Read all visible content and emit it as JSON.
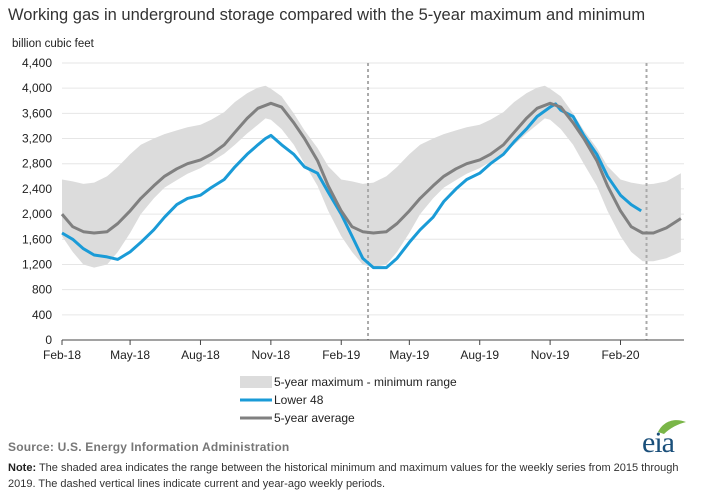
{
  "header": {
    "title": "Working gas in underground  storage compared with the 5-year maximum and minimum",
    "units": "billion cubic feet"
  },
  "footer": {
    "source": "Source:  U.S. Energy Information Administration",
    "note_label": "Note:",
    "note_text": " The shaded area indicates the range between the historical minimum and maximum values for the weekly series from 2015 through 2019. The dashed vertical lines indicate current and year-ago weekly periods.",
    "logo_text": "eia"
  },
  "colors": {
    "range_band": "#dcdcdc",
    "lower48": "#1a9bd7",
    "avg": "#808080",
    "logo": "#1a4f7a",
    "dashed_line": "#aaaaaa"
  },
  "chart_data": {
    "type": "area",
    "title": "Working gas in underground  storage compared with the 5-year maximum and minimum",
    "ylabel": "billion cubic feet",
    "ylim": [
      0,
      4400
    ],
    "yticks": [
      0,
      400,
      800,
      1200,
      1600,
      2000,
      2400,
      2800,
      3200,
      3600,
      4000,
      4400
    ],
    "ytick_labels": [
      "0",
      "400",
      "800",
      "1,200",
      "1,600",
      "2,000",
      "2,400",
      "2,800",
      "3,200",
      "3,600",
      "4,000",
      "4,400"
    ],
    "xlim": [
      "2018-02-01",
      "2020-04-24"
    ],
    "xticks": [
      "2018-02-01",
      "2018-05-01",
      "2018-08-01",
      "2018-11-01",
      "2019-02-01",
      "2019-05-01",
      "2019-08-01",
      "2019-11-01",
      "2020-02-01"
    ],
    "xtick_labels": [
      "Feb-18",
      "May-18",
      "Aug-18",
      "Nov-18",
      "Feb-19",
      "May-19",
      "Aug-19",
      "Nov-19",
      "Feb-20"
    ],
    "grid": "horizontal",
    "legend_position": "bottom",
    "vertical_markers": [
      "2019-03-08",
      "2020-03-06"
    ],
    "series": [
      {
        "name": "5-year maximum - minimum range",
        "kind": "band",
        "x": [
          "2018-02-01",
          "2018-02-15",
          "2018-03-01",
          "2018-03-15",
          "2018-04-01",
          "2018-04-15",
          "2018-05-01",
          "2018-05-15",
          "2018-06-01",
          "2018-06-15",
          "2018-07-01",
          "2018-07-15",
          "2018-08-01",
          "2018-08-15",
          "2018-09-01",
          "2018-09-15",
          "2018-10-01",
          "2018-10-15",
          "2018-10-25",
          "2018-11-01",
          "2018-11-15",
          "2018-12-01",
          "2018-12-15",
          "2019-01-01",
          "2019-01-15",
          "2019-02-01",
          "2019-02-15",
          "2019-03-01",
          "2019-03-15",
          "2019-04-01",
          "2019-04-15",
          "2019-05-01",
          "2019-05-15",
          "2019-06-01",
          "2019-06-15",
          "2019-07-01",
          "2019-07-15",
          "2019-08-01",
          "2019-08-15",
          "2019-09-01",
          "2019-09-15",
          "2019-10-01",
          "2019-10-15",
          "2019-10-25",
          "2019-11-01",
          "2019-11-15",
          "2019-12-01",
          "2019-12-15",
          "2020-01-01",
          "2020-01-15",
          "2020-02-01",
          "2020-02-15",
          "2020-03-01",
          "2020-03-15",
          "2020-04-01",
          "2020-04-20"
        ],
        "upper": [
          2550,
          2520,
          2480,
          2500,
          2600,
          2750,
          2950,
          3100,
          3200,
          3270,
          3330,
          3380,
          3420,
          3500,
          3620,
          3780,
          3920,
          4010,
          4040,
          3990,
          3870,
          3600,
          3330,
          3050,
          2760,
          2550,
          2520,
          2480,
          2500,
          2600,
          2750,
          2950,
          3100,
          3200,
          3270,
          3330,
          3380,
          3420,
          3500,
          3620,
          3780,
          3920,
          4010,
          4040,
          3990,
          3870,
          3600,
          3330,
          3050,
          2760,
          2550,
          2500,
          2470,
          2480,
          2520,
          2650
        ],
        "lower": [
          1650,
          1400,
          1200,
          1150,
          1200,
          1400,
          1700,
          2000,
          2250,
          2420,
          2540,
          2640,
          2730,
          2830,
          2960,
          3100,
          3280,
          3420,
          3520,
          3500,
          3350,
          3100,
          2800,
          2450,
          2050,
          1650,
          1400,
          1200,
          1150,
          1200,
          1400,
          1700,
          2000,
          2250,
          2420,
          2540,
          2640,
          2730,
          2830,
          2960,
          3100,
          3280,
          3420,
          3520,
          3500,
          3350,
          3100,
          2800,
          2450,
          2050,
          1650,
          1400,
          1250,
          1250,
          1300,
          1400
        ]
      },
      {
        "name": "Lower 48",
        "kind": "line",
        "x": [
          "2018-02-01",
          "2018-02-15",
          "2018-03-01",
          "2018-03-15",
          "2018-04-01",
          "2018-04-15",
          "2018-05-01",
          "2018-05-15",
          "2018-06-01",
          "2018-06-15",
          "2018-07-01",
          "2018-07-15",
          "2018-08-01",
          "2018-08-15",
          "2018-09-01",
          "2018-09-15",
          "2018-10-01",
          "2018-10-15",
          "2018-10-25",
          "2018-11-01",
          "2018-11-15",
          "2018-12-01",
          "2018-12-15",
          "2019-01-01",
          "2019-01-15",
          "2019-02-01",
          "2019-02-15",
          "2019-03-01",
          "2019-03-15",
          "2019-04-01",
          "2019-04-15",
          "2019-05-01",
          "2019-05-15",
          "2019-06-01",
          "2019-06-15",
          "2019-07-01",
          "2019-07-15",
          "2019-08-01",
          "2019-08-15",
          "2019-09-01",
          "2019-09-15",
          "2019-10-01",
          "2019-10-15",
          "2019-11-01",
          "2019-11-08",
          "2019-11-15",
          "2019-12-01",
          "2019-12-15",
          "2020-01-01",
          "2020-01-15",
          "2020-02-01",
          "2020-02-15",
          "2020-02-28"
        ],
        "values": [
          1700,
          1600,
          1450,
          1350,
          1320,
          1280,
          1400,
          1550,
          1750,
          1950,
          2150,
          2250,
          2300,
          2420,
          2550,
          2750,
          2950,
          3100,
          3200,
          3250,
          3100,
          2950,
          2750,
          2650,
          2350,
          2000,
          1650,
          1300,
          1150,
          1150,
          1300,
          1550,
          1750,
          1950,
          2200,
          2400,
          2550,
          2650,
          2800,
          2950,
          3150,
          3350,
          3550,
          3700,
          3750,
          3650,
          3550,
          3250,
          2950,
          2600,
          2300,
          2150,
          2050
        ]
      },
      {
        "name": "5-year average",
        "kind": "line",
        "x": [
          "2018-02-01",
          "2018-02-15",
          "2018-03-01",
          "2018-03-15",
          "2018-04-01",
          "2018-04-15",
          "2018-05-01",
          "2018-05-15",
          "2018-06-01",
          "2018-06-15",
          "2018-07-01",
          "2018-07-15",
          "2018-08-01",
          "2018-08-15",
          "2018-09-01",
          "2018-09-15",
          "2018-10-01",
          "2018-10-15",
          "2018-11-01",
          "2018-11-15",
          "2018-12-01",
          "2018-12-15",
          "2019-01-01",
          "2019-01-15",
          "2019-02-01",
          "2019-02-15",
          "2019-03-01",
          "2019-03-15",
          "2019-04-01",
          "2019-04-15",
          "2019-05-01",
          "2019-05-15",
          "2019-06-01",
          "2019-06-15",
          "2019-07-01",
          "2019-07-15",
          "2019-08-01",
          "2019-08-15",
          "2019-09-01",
          "2019-09-15",
          "2019-10-01",
          "2019-10-15",
          "2019-11-01",
          "2019-11-15",
          "2019-12-01",
          "2019-12-15",
          "2020-01-01",
          "2020-01-15",
          "2020-02-01",
          "2020-02-15",
          "2020-03-01",
          "2020-03-15",
          "2020-04-01",
          "2020-04-20"
        ],
        "values": [
          2000,
          1800,
          1720,
          1700,
          1720,
          1850,
          2050,
          2250,
          2450,
          2600,
          2720,
          2800,
          2860,
          2950,
          3100,
          3300,
          3520,
          3680,
          3760,
          3700,
          3450,
          3200,
          2850,
          2450,
          2050,
          1800,
          1720,
          1700,
          1720,
          1850,
          2050,
          2250,
          2450,
          2600,
          2720,
          2800,
          2860,
          2950,
          3100,
          3300,
          3520,
          3680,
          3760,
          3700,
          3450,
          3200,
          2850,
          2450,
          2050,
          1800,
          1700,
          1700,
          1780,
          1930
        ]
      }
    ]
  }
}
